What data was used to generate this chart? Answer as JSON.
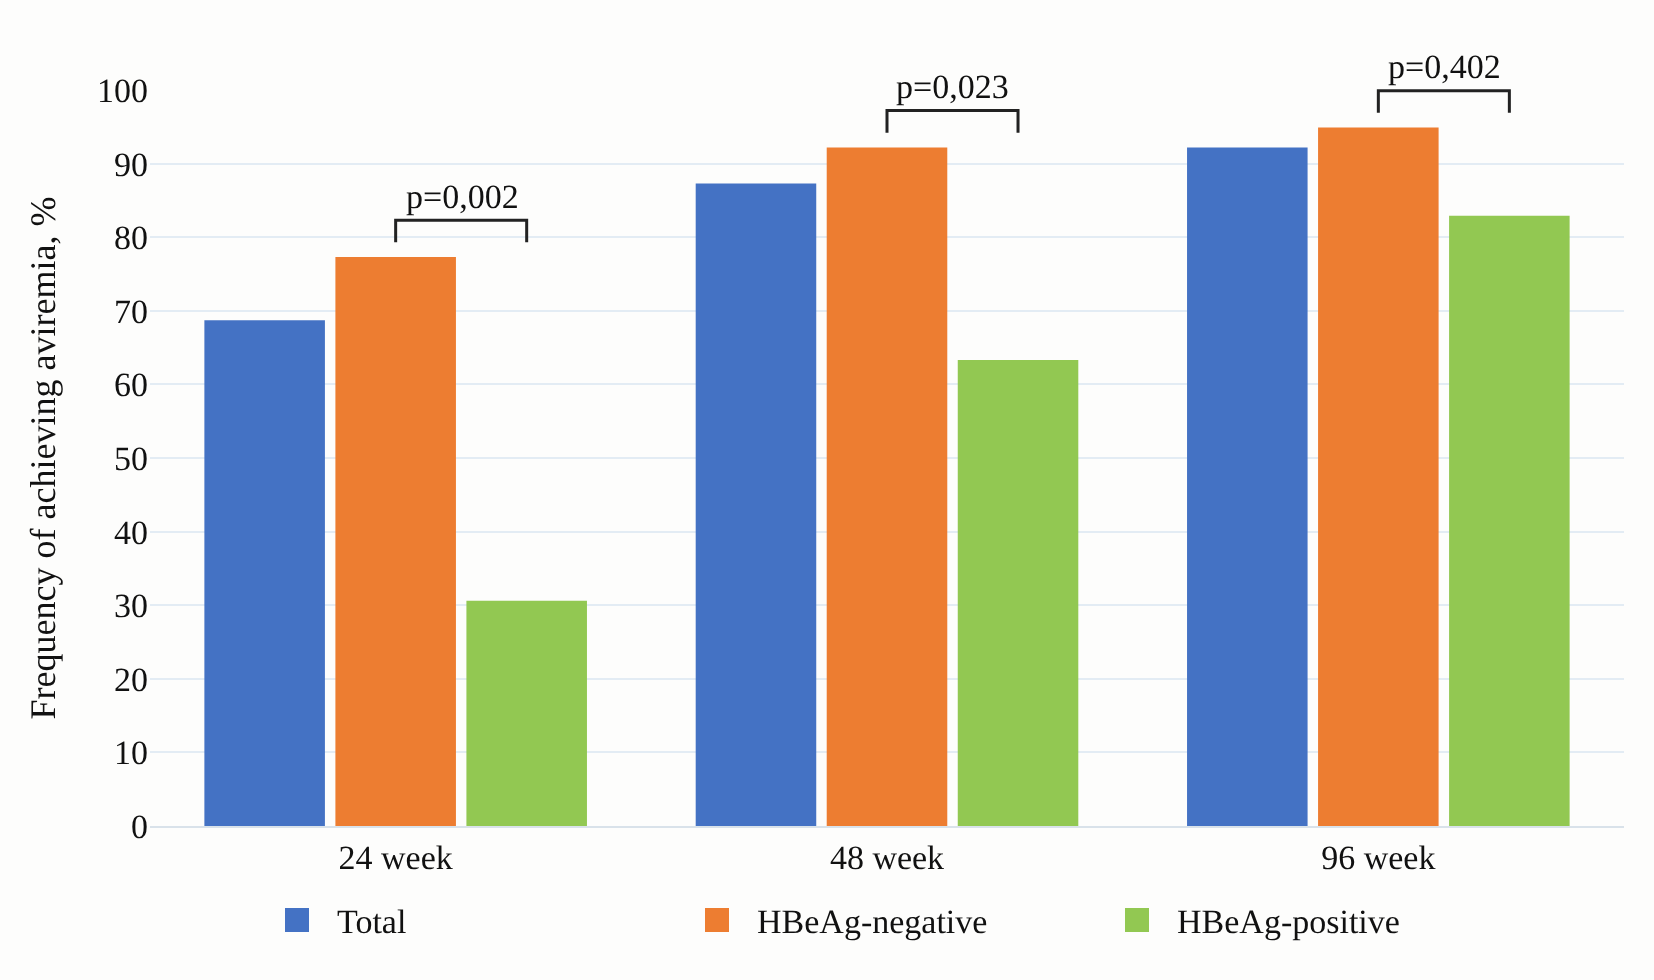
{
  "chart_data": {
    "type": "bar",
    "ylabel": "Frequency of achieving aviremia, %",
    "categories": [
      "24 week",
      "48 week",
      "96 week"
    ],
    "series": [
      {
        "name": "Total",
        "color": "#4472c4",
        "values": [
          68.7,
          87.3,
          92.2
        ]
      },
      {
        "name": "HBeAg-negative",
        "color": "#ed7d31",
        "values": [
          77.3,
          92.2,
          94.9
        ]
      },
      {
        "name": "HBeAg-positive",
        "color": "#92c852",
        "values": [
          30.6,
          63.3,
          82.9
        ]
      }
    ],
    "annotations": [
      "p=0,002",
      "p=0,023",
      "p=0,402"
    ],
    "ylim": [
      0,
      100
    ],
    "yticks": [
      0,
      10,
      20,
      30,
      40,
      50,
      60,
      70,
      80,
      90,
      100
    ],
    "grid": "y",
    "legend": "bottom"
  }
}
